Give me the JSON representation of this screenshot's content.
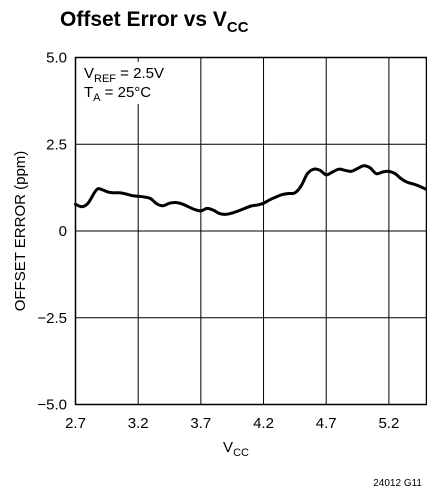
{
  "chart_data": {
    "type": "line",
    "title": {
      "main": "Offset Error vs V",
      "sub": "CC"
    },
    "xlabel": {
      "main": "V",
      "sub": "CC"
    },
    "ylabel": "OFFSET ERROR (ppm)",
    "xlim": [
      2.7,
      5.5
    ],
    "ylim": [
      -5.0,
      5.0
    ],
    "x_ticks": [
      2.7,
      3.2,
      3.7,
      4.2,
      4.7,
      5.2
    ],
    "x_tick_labels": [
      "2.7",
      "3.2",
      "3.7",
      "4.2",
      "4.7",
      "5.2"
    ],
    "y_ticks": [
      5.0,
      2.5,
      0,
      -2.5,
      -5.0
    ],
    "y_tick_labels": [
      "5.0",
      "2.5",
      "0",
      "−2.5",
      "−5.0"
    ],
    "grid": true,
    "annotations": [
      {
        "main": "V",
        "sub": "REF",
        "rest": " = 2.5V"
      },
      {
        "main": "T",
        "sub": "A",
        "rest": " = 25°C"
      }
    ],
    "figure_id": "24012 G11",
    "series": [
      {
        "x": [
          2.7,
          2.75,
          2.8,
          2.85,
          2.88,
          2.92,
          2.96,
          3.0,
          3.05,
          3.1,
          3.15,
          3.2,
          3.25,
          3.3,
          3.35,
          3.4,
          3.45,
          3.5,
          3.55,
          3.6,
          3.65,
          3.7,
          3.75,
          3.8,
          3.85,
          3.9,
          3.95,
          4.0,
          4.05,
          4.1,
          4.15,
          4.2,
          4.25,
          4.3,
          4.35,
          4.4,
          4.45,
          4.5,
          4.55,
          4.6,
          4.65,
          4.7,
          4.75,
          4.8,
          4.85,
          4.9,
          4.95,
          5.0,
          5.05,
          5.1,
          5.15,
          5.2,
          5.25,
          5.3,
          5.35,
          5.4,
          5.45,
          5.5
        ],
        "y": [
          0.77,
          0.7,
          0.8,
          1.1,
          1.22,
          1.18,
          1.12,
          1.1,
          1.1,
          1.07,
          1.02,
          1.0,
          0.98,
          0.93,
          0.78,
          0.73,
          0.8,
          0.82,
          0.78,
          0.7,
          0.62,
          0.58,
          0.65,
          0.6,
          0.5,
          0.48,
          0.52,
          0.58,
          0.65,
          0.72,
          0.75,
          0.8,
          0.9,
          0.98,
          1.05,
          1.08,
          1.1,
          1.3,
          1.65,
          1.78,
          1.75,
          1.62,
          1.7,
          1.78,
          1.75,
          1.72,
          1.8,
          1.88,
          1.82,
          1.65,
          1.7,
          1.72,
          1.65,
          1.5,
          1.4,
          1.35,
          1.28,
          1.2
        ]
      }
    ]
  }
}
